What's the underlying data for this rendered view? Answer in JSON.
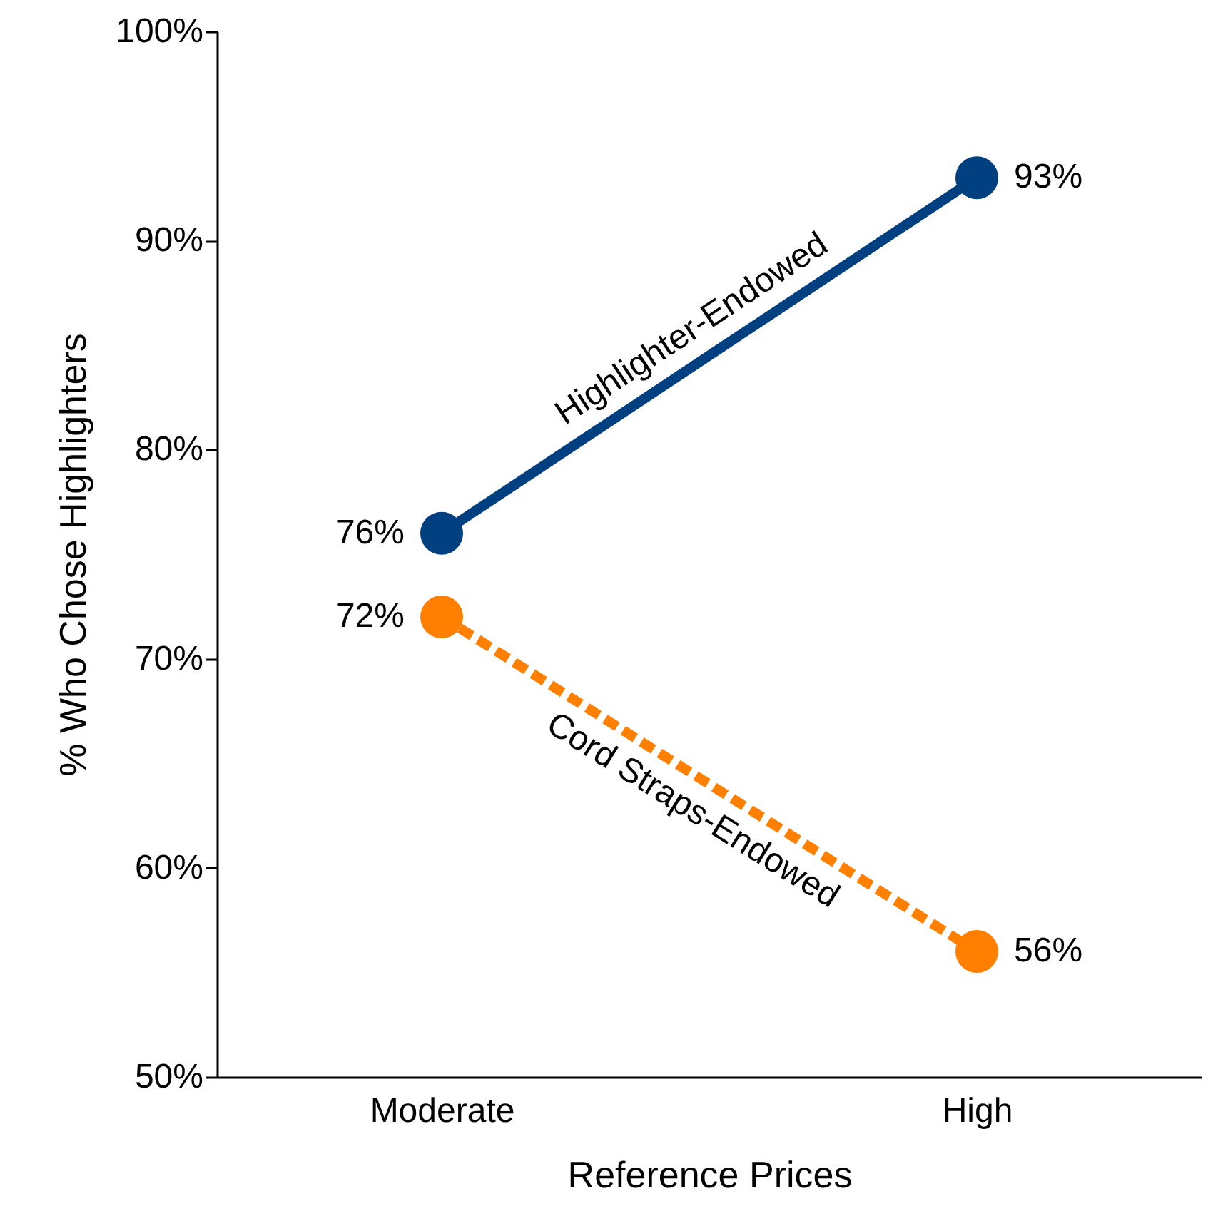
{
  "chart_data": {
    "type": "line",
    "xlabel": "Reference Prices",
    "ylabel": "% Who Chose Highlighters",
    "categories": [
      "Moderate",
      "High"
    ],
    "series": [
      {
        "name": "Highlighter-Endowed",
        "color": "#003f80",
        "values": [
          76,
          93
        ],
        "value_labels": [
          "76%",
          "93%"
        ],
        "line_style": "solid"
      },
      {
        "name": "Cord Straps-Endowed",
        "color": "#ff8000",
        "values": [
          72,
          56
        ],
        "value_labels": [
          "72%",
          "56%"
        ],
        "line_style": "dashed"
      }
    ],
    "ylim": [
      50,
      100
    ],
    "yticks": [
      {
        "value": 50,
        "label": "50%"
      },
      {
        "value": 60,
        "label": "60%"
      },
      {
        "value": 70,
        "label": "70%"
      },
      {
        "value": 80,
        "label": "80%"
      },
      {
        "value": 90,
        "label": "90%"
      },
      {
        "value": 100,
        "label": "100%"
      }
    ],
    "grid": false,
    "marker": "circle"
  }
}
